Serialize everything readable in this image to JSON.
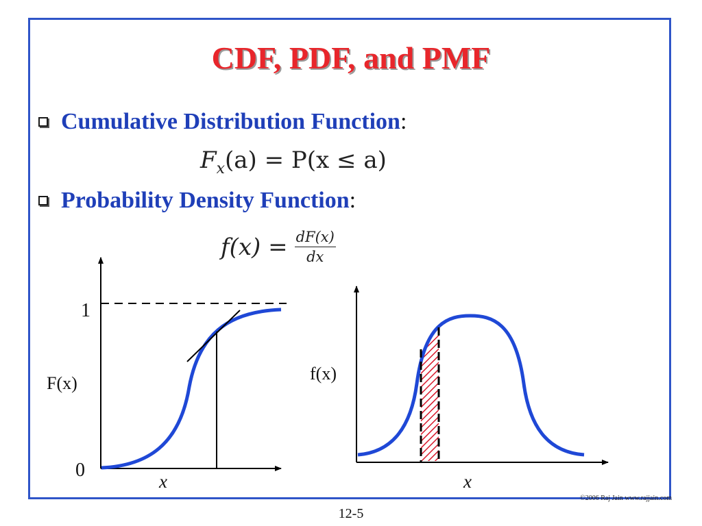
{
  "slide": {
    "title": "CDF, PDF, and PMF",
    "bullets": [
      {
        "label": "Cumulative Distribution Function",
        "suffix": ":"
      },
      {
        "label": "Probability Density Function",
        "suffix": ":"
      }
    ],
    "formulas": {
      "cdf": {
        "lhs": "F",
        "sub": "x",
        "arg": "(a) = P(x ≤ a)"
      },
      "pdf": {
        "lhs": "f(x) =",
        "num": "dF(x)",
        "den": "dx"
      }
    },
    "left_graph": {
      "y_top_label": "1",
      "y_bottom_label": "0",
      "y_axis_label": "F(x)",
      "x_axis_label": "x"
    },
    "right_graph": {
      "y_axis_label": "f(x)",
      "x_axis_label": "x"
    },
    "copyright": "©2006 Raj Jain www.rajjain.com",
    "page_number": "12-5"
  },
  "colors": {
    "title": "#e8262b",
    "bullet_text": "#1f3fb8",
    "frame": "#2f55c8",
    "curve": "#1f48d6",
    "hatch": "#d8182b"
  }
}
